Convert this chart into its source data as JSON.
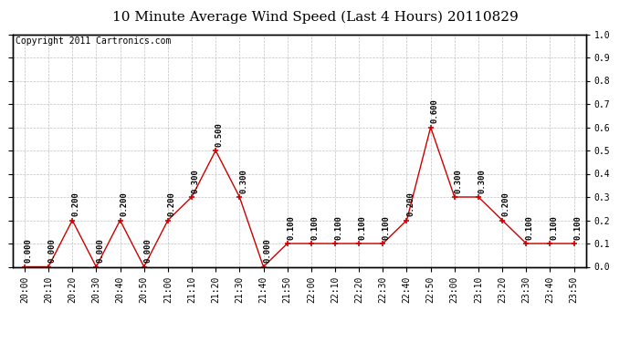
{
  "title": "10 Minute Average Wind Speed (Last 4 Hours) 20110829",
  "copyright": "Copyright 2011 Cartronics.com",
  "x_labels": [
    "20:00",
    "20:10",
    "20:20",
    "20:30",
    "20:40",
    "20:50",
    "21:00",
    "21:10",
    "21:20",
    "21:30",
    "21:40",
    "21:50",
    "22:00",
    "22:10",
    "22:20",
    "22:30",
    "22:40",
    "22:50",
    "23:00",
    "23:10",
    "23:20",
    "23:30",
    "23:40",
    "23:50"
  ],
  "y_values": [
    0.0,
    0.0,
    0.2,
    0.0,
    0.2,
    0.0,
    0.2,
    0.3,
    0.5,
    0.3,
    0.0,
    0.1,
    0.1,
    0.1,
    0.1,
    0.1,
    0.2,
    0.6,
    0.3,
    0.3,
    0.2,
    0.1,
    0.1,
    0.1
  ],
  "line_color": "#cc0000",
  "marker_color": "#cc0000",
  "grid_color": "#b0b0b0",
  "background_color": "#ffffff",
  "plot_bg_color": "#ffffff",
  "ylim": [
    0.0,
    1.0
  ],
  "yticks": [
    0.0,
    0.1,
    0.2,
    0.3,
    0.4,
    0.5,
    0.6,
    0.7,
    0.8,
    0.9,
    1.0
  ],
  "title_fontsize": 11,
  "tick_fontsize": 7,
  "annotation_fontsize": 6.5,
  "copyright_fontsize": 7
}
